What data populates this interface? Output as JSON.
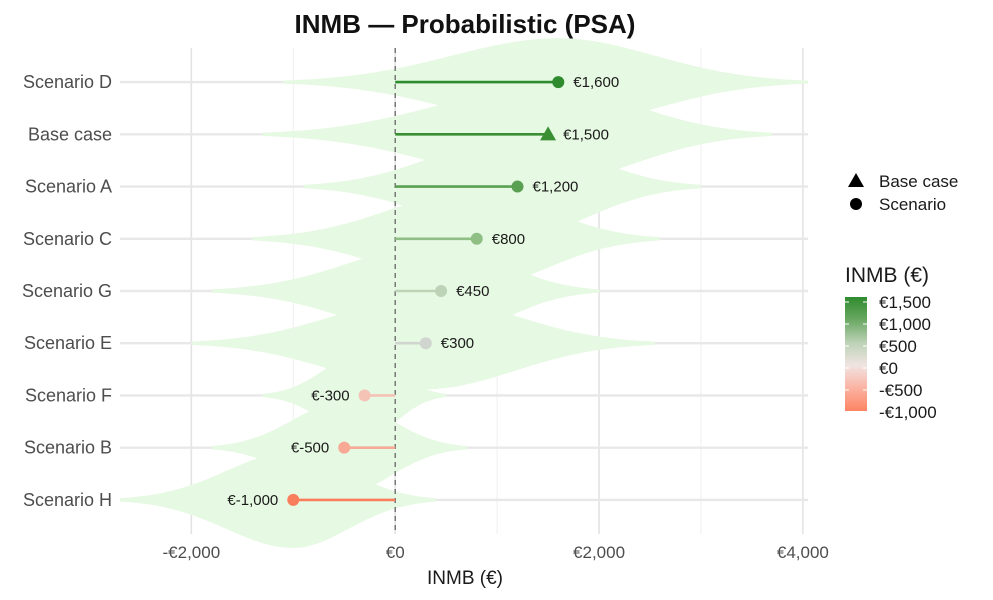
{
  "chart_data": {
    "type": "dot-violin",
    "title": "INMB — Probabilistic (PSA)",
    "xlabel": "INMB (€)",
    "ylabel": "",
    "xlim": [
      -2700,
      4050
    ],
    "xticks": [
      -2000,
      0,
      2000,
      4000
    ],
    "xtick_labels": [
      "-€2,000",
      "€0",
      "€2,000",
      "€4,000"
    ],
    "grid": true,
    "reference_line": 0,
    "categories": [
      "Scenario D",
      "Base case",
      "Scenario A",
      "Scenario C",
      "Scenario G",
      "Scenario E",
      "Scenario F",
      "Scenario B",
      "Scenario H"
    ],
    "values": [
      1600,
      1500,
      1200,
      800,
      450,
      300,
      -300,
      -500,
      -1000
    ],
    "labels": [
      "€1,600",
      "€1,500",
      "€1,200",
      "€800",
      "€450",
      "€300",
      "€-300",
      "€-500",
      "€-1,000"
    ],
    "shapes": [
      "circle",
      "triangle",
      "circle",
      "circle",
      "circle",
      "circle",
      "circle",
      "circle",
      "circle"
    ],
    "colors": [
      "#2e8b2e",
      "#3a8f35",
      "#5aa052",
      "#8fbf84",
      "#bdd3b7",
      "#d0d6cf",
      "#f5c2b6",
      "#f7a996",
      "#f87e5e"
    ],
    "distributions": [
      {
        "min": -1100,
        "max": 4050,
        "width": 0.42
      },
      {
        "min": -1300,
        "max": 3700,
        "width": 0.46
      },
      {
        "min": -900,
        "max": 3000,
        "width": 0.48
      },
      {
        "min": -1400,
        "max": 2600,
        "width": 0.46
      },
      {
        "min": -1800,
        "max": 2000,
        "width": 0.46
      },
      {
        "min": -2000,
        "max": 2550,
        "width": 0.44
      },
      {
        "min": -1300,
        "max": 500,
        "width": 0.42
      },
      {
        "min": -1800,
        "max": 700,
        "width": 0.44
      },
      {
        "min": -2700,
        "max": 400,
        "width": 0.46
      }
    ],
    "violin_color": "#e6f9e2",
    "shape_legend": {
      "items": [
        {
          "shape": "triangle",
          "label": "Base case"
        },
        {
          "shape": "circle",
          "label": "Scenario"
        }
      ]
    },
    "color_legend": {
      "title": "INMB (€)",
      "labels": [
        "€1,500",
        "€1,000",
        "€500",
        "€0",
        "-€500",
        "-€1,000"
      ],
      "gradient": [
        "#2e8b2e",
        "#6aa863",
        "#bcd2b6",
        "#f0e4e1",
        "#fbb2a1",
        "#fc8462"
      ]
    }
  }
}
